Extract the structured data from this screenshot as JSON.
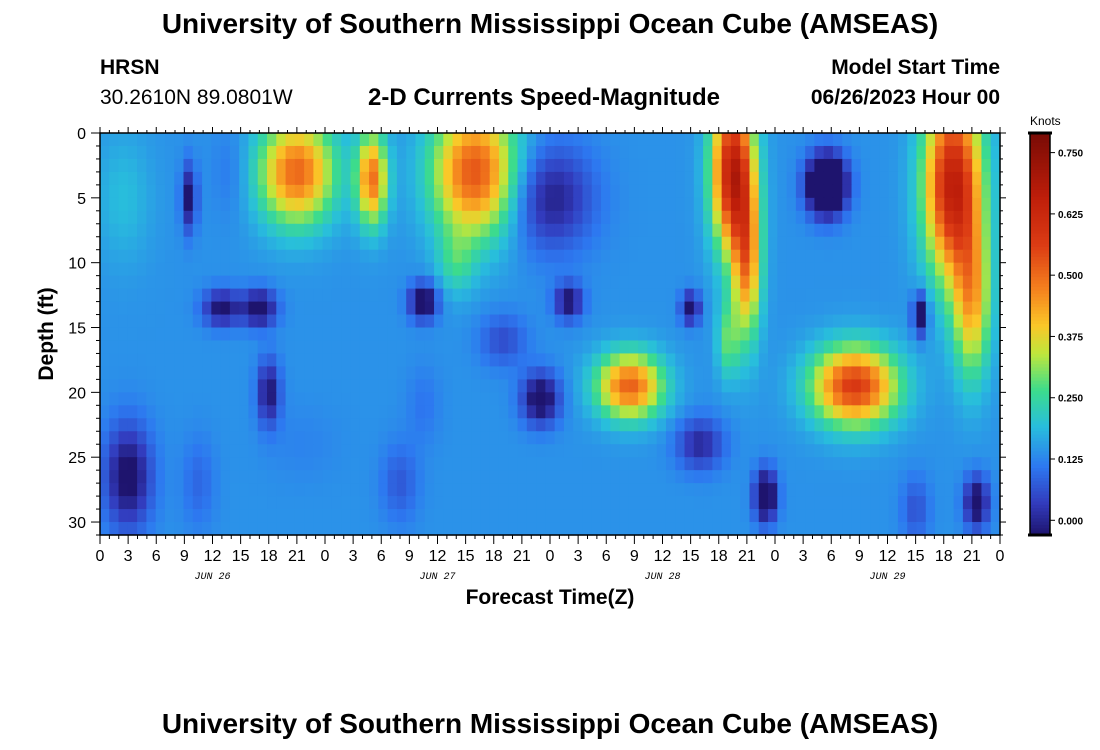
{
  "header": {
    "title": "University of Southern Mississippi Ocean Cube (AMSEAS)",
    "station_name": "HRSN",
    "station_coords": "30.2610N  89.0801W",
    "chart_heading": "2-D Currents Speed-Magnitude",
    "model_start_label": "Model Start Time",
    "model_start_value": "06/26/2023 Hour 00"
  },
  "footer": {
    "title": "University of Southern Mississippi Ocean Cube (AMSEAS)"
  },
  "chart_data": {
    "type": "heatmap",
    "title": "2-D Currents Speed-Magnitude",
    "xlabel": "Forecast Time(Z)",
    "ylabel": "Depth (ft)",
    "x_range_hours": [
      0,
      96
    ],
    "y_range_ft": [
      0,
      31
    ],
    "x_tick_labels": [
      "0",
      "3",
      "6",
      "9",
      "12",
      "15",
      "18",
      "21",
      "0",
      "3",
      "6",
      "9",
      "12",
      "15",
      "18",
      "21",
      "0",
      "3",
      "6",
      "9",
      "12",
      "15",
      "18",
      "21",
      "0",
      "3",
      "6",
      "9",
      "12",
      "15",
      "18",
      "21",
      "0"
    ],
    "day_labels": [
      {
        "label": "JUN 26",
        "hour": 12
      },
      {
        "label": "JUN 27",
        "hour": 36
      },
      {
        "label": "JUN 28",
        "hour": 60
      },
      {
        "label": "JUN 29",
        "hour": 84
      }
    ],
    "y_ticks": [
      0,
      5,
      10,
      15,
      20,
      25,
      30
    ],
    "colorbar": {
      "unit": "Knots",
      "min": -0.03,
      "max": 0.79,
      "tick_values": [
        0.75,
        0.625,
        0.5,
        0.375,
        0.25,
        0.125,
        0.0
      ],
      "tick_labels": [
        "0.750",
        "0.625",
        "0.500",
        "0.375",
        "0.250",
        "0.125",
        "0.000"
      ]
    },
    "background_value": 0.14,
    "features": [
      {
        "t": 2.5,
        "d": 5,
        "st": 3.0,
        "sd": 5.0,
        "v": 0.2
      },
      {
        "t": 9.5,
        "d": 5,
        "st": 0.8,
        "sd": 2.5,
        "v": -0.07
      },
      {
        "t": 14,
        "d": 3,
        "st": 2.0,
        "sd": 3.5,
        "v": 0.1
      },
      {
        "t": 21,
        "d": 3,
        "st": 4.0,
        "sd": 4.0,
        "v": 0.57
      },
      {
        "t": 29,
        "d": 3.5,
        "st": 1.6,
        "sd": 3.5,
        "v": 0.55
      },
      {
        "t": 40,
        "d": 3,
        "st": 4.5,
        "sd": 5.0,
        "v": 0.6
      },
      {
        "t": 38,
        "d": 10,
        "st": 2.0,
        "sd": 2.5,
        "v": 0.25
      },
      {
        "t": 48,
        "d": 5,
        "st": 4.5,
        "sd": 4.0,
        "v": -0.04
      },
      {
        "t": 67.5,
        "d": 3,
        "st": 2.2,
        "sd": 6.0,
        "v": 0.75
      },
      {
        "t": 69,
        "d": 10,
        "st": 1.5,
        "sd": 6.0,
        "v": 0.5
      },
      {
        "t": 67,
        "d": 16,
        "st": 1.2,
        "sd": 3.0,
        "v": 0.3
      },
      {
        "t": 77.5,
        "d": 4,
        "st": 2.0,
        "sd": 2.2,
        "v": -0.35
      },
      {
        "t": 91,
        "d": 4,
        "st": 3.0,
        "sd": 7.0,
        "v": 0.75
      },
      {
        "t": 93,
        "d": 13,
        "st": 2.0,
        "sd": 6.0,
        "v": 0.45
      },
      {
        "t": 17,
        "d": 13.5,
        "st": 1.8,
        "sd": 1.4,
        "v": -0.1
      },
      {
        "t": 13,
        "d": 13.5,
        "st": 2.0,
        "sd": 1.4,
        "v": -0.07
      },
      {
        "t": 34.5,
        "d": 13,
        "st": 1.5,
        "sd": 1.4,
        "v": -0.12
      },
      {
        "t": 50,
        "d": 13,
        "st": 1.5,
        "sd": 1.4,
        "v": -0.07
      },
      {
        "t": 63,
        "d": 13.5,
        "st": 1.0,
        "sd": 1.2,
        "v": -0.1
      },
      {
        "t": 87.5,
        "d": 14,
        "st": 0.8,
        "sd": 1.6,
        "v": -0.12
      },
      {
        "t": 56.5,
        "d": 19.5,
        "st": 3.5,
        "sd": 2.5,
        "v": 0.58
      },
      {
        "t": 80.5,
        "d": 19.5,
        "st": 4.5,
        "sd": 3.0,
        "v": 0.65
      },
      {
        "t": 34.5,
        "d": 21,
        "st": 1.8,
        "sd": 3.0,
        "v": 0.1
      },
      {
        "t": 47,
        "d": 20.5,
        "st": 2.0,
        "sd": 2.0,
        "v": -0.1
      },
      {
        "t": 18,
        "d": 20,
        "st": 1.2,
        "sd": 2.5,
        "v": -0.06
      },
      {
        "t": 21.5,
        "d": 24,
        "st": 4.0,
        "sd": 3.0,
        "v": 0.12
      },
      {
        "t": 3,
        "d": 26.5,
        "st": 2.5,
        "sd": 4.0,
        "v": -0.08
      },
      {
        "t": 10.5,
        "d": 27,
        "st": 1.8,
        "sd": 3.5,
        "v": 0.08
      },
      {
        "t": 32,
        "d": 27,
        "st": 2.0,
        "sd": 3.0,
        "v": 0.06
      },
      {
        "t": 71,
        "d": 28,
        "st": 1.2,
        "sd": 2.0,
        "v": -0.15
      },
      {
        "t": 93.5,
        "d": 28.5,
        "st": 1.3,
        "sd": 2.0,
        "v": -0.1
      },
      {
        "t": 87,
        "d": 29,
        "st": 1.5,
        "sd": 2.5,
        "v": 0.05
      },
      {
        "t": 64,
        "d": 24,
        "st": 2.5,
        "sd": 2.0,
        "v": -0.02
      },
      {
        "t": 43,
        "d": 16,
        "st": 2.5,
        "sd": 2.0,
        "v": 0.04
      }
    ]
  }
}
